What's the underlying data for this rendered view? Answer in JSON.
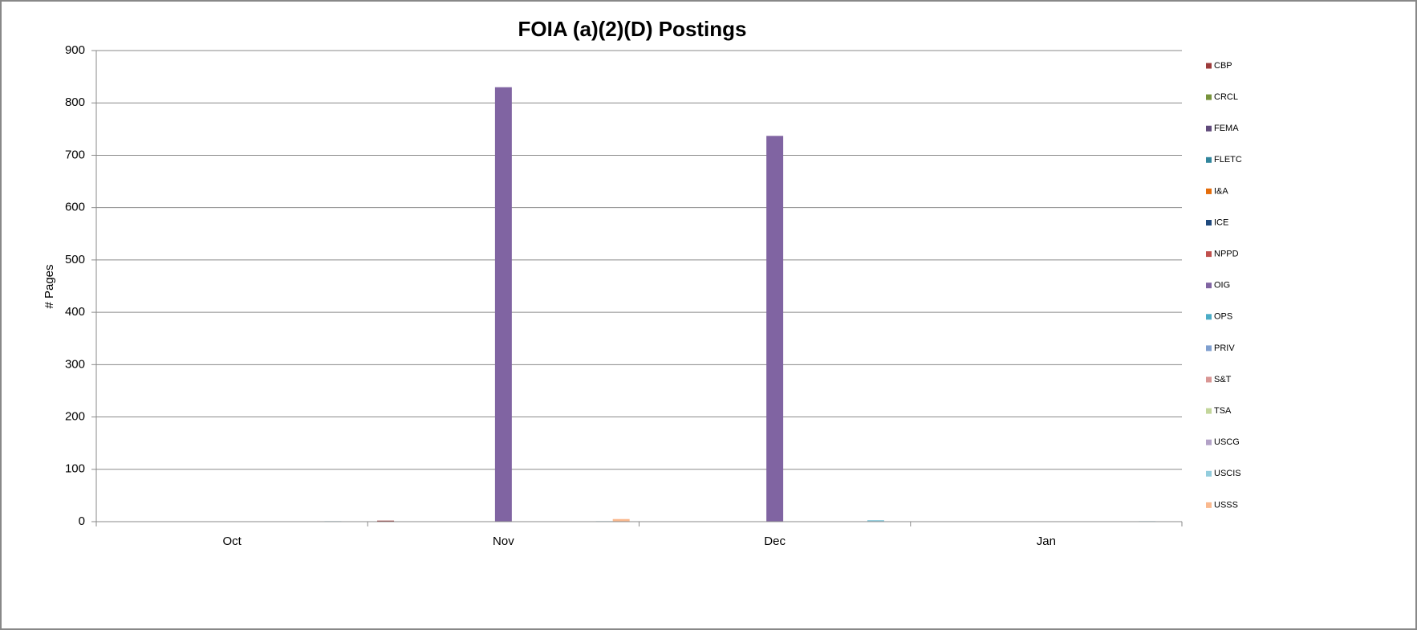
{
  "chart_data": {
    "type": "bar",
    "title": "FOIA (a)(2)(D) Postings",
    "y_label": "# Pages",
    "categories": [
      "Oct",
      "Nov",
      "Dec",
      "Jan"
    ],
    "series": [
      {
        "name": "CBP",
        "color": "#9c3b3b",
        "values": [
          0,
          2,
          0,
          0
        ]
      },
      {
        "name": "CRCL",
        "color": "#77933c",
        "values": [
          0,
          0,
          0,
          0
        ]
      },
      {
        "name": "FEMA",
        "color": "#604a7b",
        "values": [
          0,
          0,
          0,
          0
        ]
      },
      {
        "name": "FLETC",
        "color": "#31859c",
        "values": [
          0,
          0,
          0,
          0
        ]
      },
      {
        "name": "I&A",
        "color": "#e46c0a",
        "values": [
          0,
          0,
          0,
          0
        ]
      },
      {
        "name": "ICE",
        "color": "#1f497d",
        "values": [
          0,
          0,
          0,
          0
        ]
      },
      {
        "name": "NPPD",
        "color": "#c0504d",
        "values": [
          0,
          0,
          0,
          0
        ]
      },
      {
        "name": "OIG",
        "color": "#8064a2",
        "values": [
          0,
          830,
          737,
          0
        ]
      },
      {
        "name": "OPS",
        "color": "#4bacc6",
        "values": [
          0,
          0,
          0,
          0
        ]
      },
      {
        "name": "PRIV",
        "color": "#7f9fcf",
        "values": [
          0,
          0,
          0,
          0
        ]
      },
      {
        "name": "S&T",
        "color": "#d99694",
        "values": [
          0,
          0,
          0,
          0
        ]
      },
      {
        "name": "TSA",
        "color": "#c3d69b",
        "values": [
          0,
          0,
          0,
          0
        ]
      },
      {
        "name": "USCG",
        "color": "#b3a2c7",
        "values": [
          0,
          0,
          0,
          0
        ]
      },
      {
        "name": "USCIS",
        "color": "#93cddd",
        "values": [
          1,
          1,
          3,
          1
        ]
      },
      {
        "name": "USSS",
        "color": "#fab98f",
        "values": [
          0,
          5,
          0,
          0
        ]
      }
    ],
    "ylim": [
      0,
      900
    ],
    "yticks": [
      0,
      100,
      200,
      300,
      400,
      500,
      600,
      700,
      800,
      900
    ],
    "grid": true,
    "legend": "right"
  }
}
